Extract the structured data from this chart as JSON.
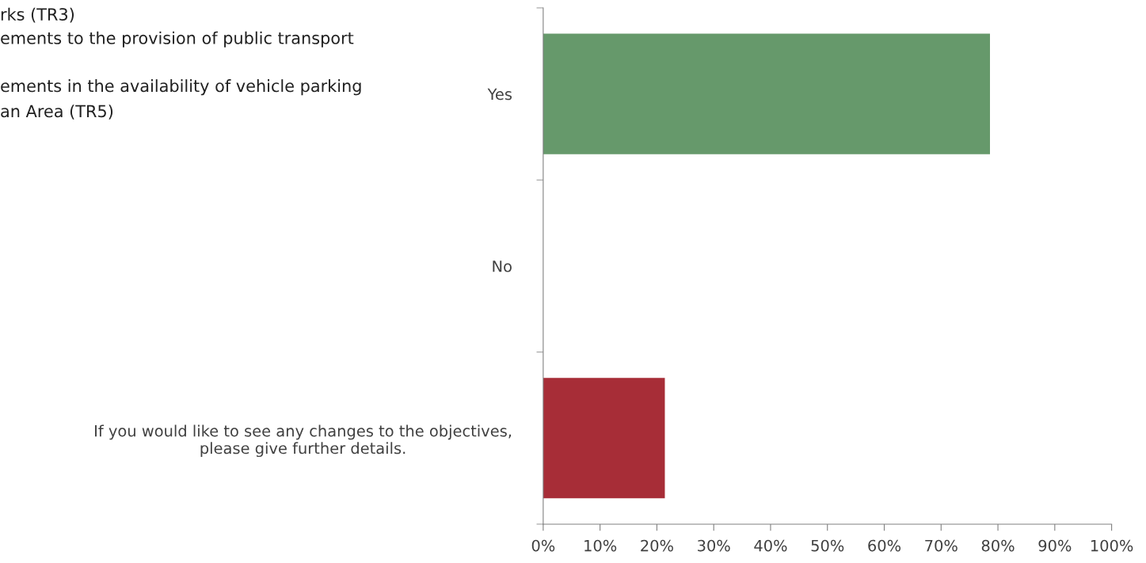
{
  "chart_data": {
    "type": "bar",
    "orientation": "horizontal",
    "categories": [
      "Yes",
      "No",
      "If you would like to see any changes to the objectives,\nplease give further details."
    ],
    "values": [
      78.6,
      0,
      21.4
    ],
    "colors": [
      "#66996b",
      "#66996b",
      "#a72d37"
    ],
    "xlim": [
      0,
      100
    ],
    "xticks": [
      {
        "value": 0,
        "label": "0%"
      },
      {
        "value": 10,
        "label": "10%"
      },
      {
        "value": 20,
        "label": "20%"
      },
      {
        "value": 30,
        "label": "30%"
      },
      {
        "value": 40,
        "label": "40%"
      },
      {
        "value": 50,
        "label": "50%"
      },
      {
        "value": 60,
        "label": "60%"
      },
      {
        "value": 70,
        "label": "70%"
      },
      {
        "value": 80,
        "label": "80%"
      },
      {
        "value": 90,
        "label": "90%"
      },
      {
        "value": 100,
        "label": "100%"
      }
    ],
    "grid": false,
    "legend": false,
    "annotations": [
      "rks (TR3)",
      "ements to the provision of public transport",
      "ements in the availability of vehicle parking",
      "an Area (TR5)"
    ]
  }
}
